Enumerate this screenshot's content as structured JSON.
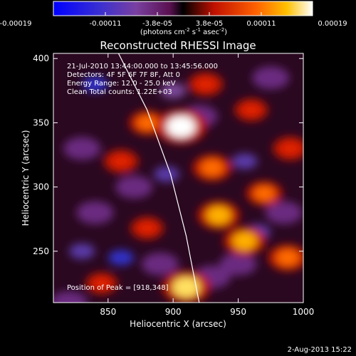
{
  "colorbar": {
    "ticks": [
      "-0.00019",
      "-0.00011",
      "-3.8e-05",
      "3.8e-05",
      "0.00011",
      "0.00019"
    ],
    "unit_main": "(photons cm",
    "unit_exp1": "-2",
    "unit_mid": " s",
    "unit_exp2": "-1",
    "unit_tail": " asec",
    "unit_exp3": "-2",
    "unit_close": ")"
  },
  "chart_data": {
    "type": "heatmap",
    "title": "Reconstructed RHESSI Image",
    "xlabel": "Heliocentric X (arcsec)",
    "ylabel": "Heliocentric Y (arcsec)",
    "xlim": [
      808,
      1000
    ],
    "ylim": [
      210,
      404
    ],
    "x_ticks": [
      850,
      900,
      950,
      1000
    ],
    "y_ticks": [
      250,
      300,
      350,
      400
    ],
    "value_range": [
      -0.00019,
      0.00019
    ],
    "peak": {
      "x": 918,
      "y": 348
    },
    "limb_curve": [
      [
        858,
        404
      ],
      [
        880,
        360
      ],
      [
        898,
        310
      ],
      [
        910,
        262
      ],
      [
        920,
        210
      ]
    ],
    "hot_spots": [
      {
        "x": 906,
        "y": 347,
        "level": 1.0
      },
      {
        "x": 910,
        "y": 222,
        "level": 0.9
      },
      {
        "x": 955,
        "y": 258,
        "level": 0.7
      },
      {
        "x": 930,
        "y": 315,
        "level": 0.6
      },
      {
        "x": 935,
        "y": 278,
        "level": 0.7
      },
      {
        "x": 988,
        "y": 245,
        "level": 0.6
      },
      {
        "x": 880,
        "y": 350,
        "level": 0.5
      },
      {
        "x": 860,
        "y": 320,
        "level": 0.45
      },
      {
        "x": 880,
        "y": 268,
        "level": 0.4
      },
      {
        "x": 925,
        "y": 380,
        "level": 0.45
      },
      {
        "x": 960,
        "y": 360,
        "level": 0.4
      },
      {
        "x": 990,
        "y": 330,
        "level": 0.45
      },
      {
        "x": 970,
        "y": 295,
        "level": 0.5
      },
      {
        "x": 845,
        "y": 225,
        "level": 0.35
      }
    ],
    "cold_spots": [
      {
        "x": 840,
        "y": 380,
        "level": -0.6
      },
      {
        "x": 830,
        "y": 250,
        "level": -0.5
      },
      {
        "x": 860,
        "y": 245,
        "level": -0.55
      },
      {
        "x": 895,
        "y": 310,
        "level": -0.5
      },
      {
        "x": 965,
        "y": 265,
        "level": -0.45
      },
      {
        "x": 955,
        "y": 320,
        "level": -0.4
      },
      {
        "x": 900,
        "y": 375,
        "level": -0.35
      }
    ],
    "annotations": [
      "21-Jul-2010 13:44:00.000 to 13:45:56.000",
      "Detectors: 4F 5F 6F 7F 8F, Att 0",
      "Energy Range: 12.0 - 25.0 keV",
      "Clean     Total counts: 1.22E+03"
    ],
    "peak_label": "Position of Peak = [918,348]"
  },
  "footer": {
    "date": "2-Aug-2013 15:22"
  }
}
